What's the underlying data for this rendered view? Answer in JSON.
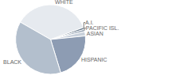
{
  "chart_data": {
    "type": "pie",
    "categories": [
      "WHITE",
      "A.I.",
      "PACIFIC ISL.",
      "ASIAN",
      "HISPANIC",
      "BLACK"
    ],
    "values": [
      36,
      1,
      1,
      2,
      22,
      38
    ],
    "colors": [
      "#e6eaef",
      "#6d7e8f",
      "#8e9db0",
      "#c9d1dc",
      "#8d9cb3",
      "#b3bfcd"
    ]
  }
}
